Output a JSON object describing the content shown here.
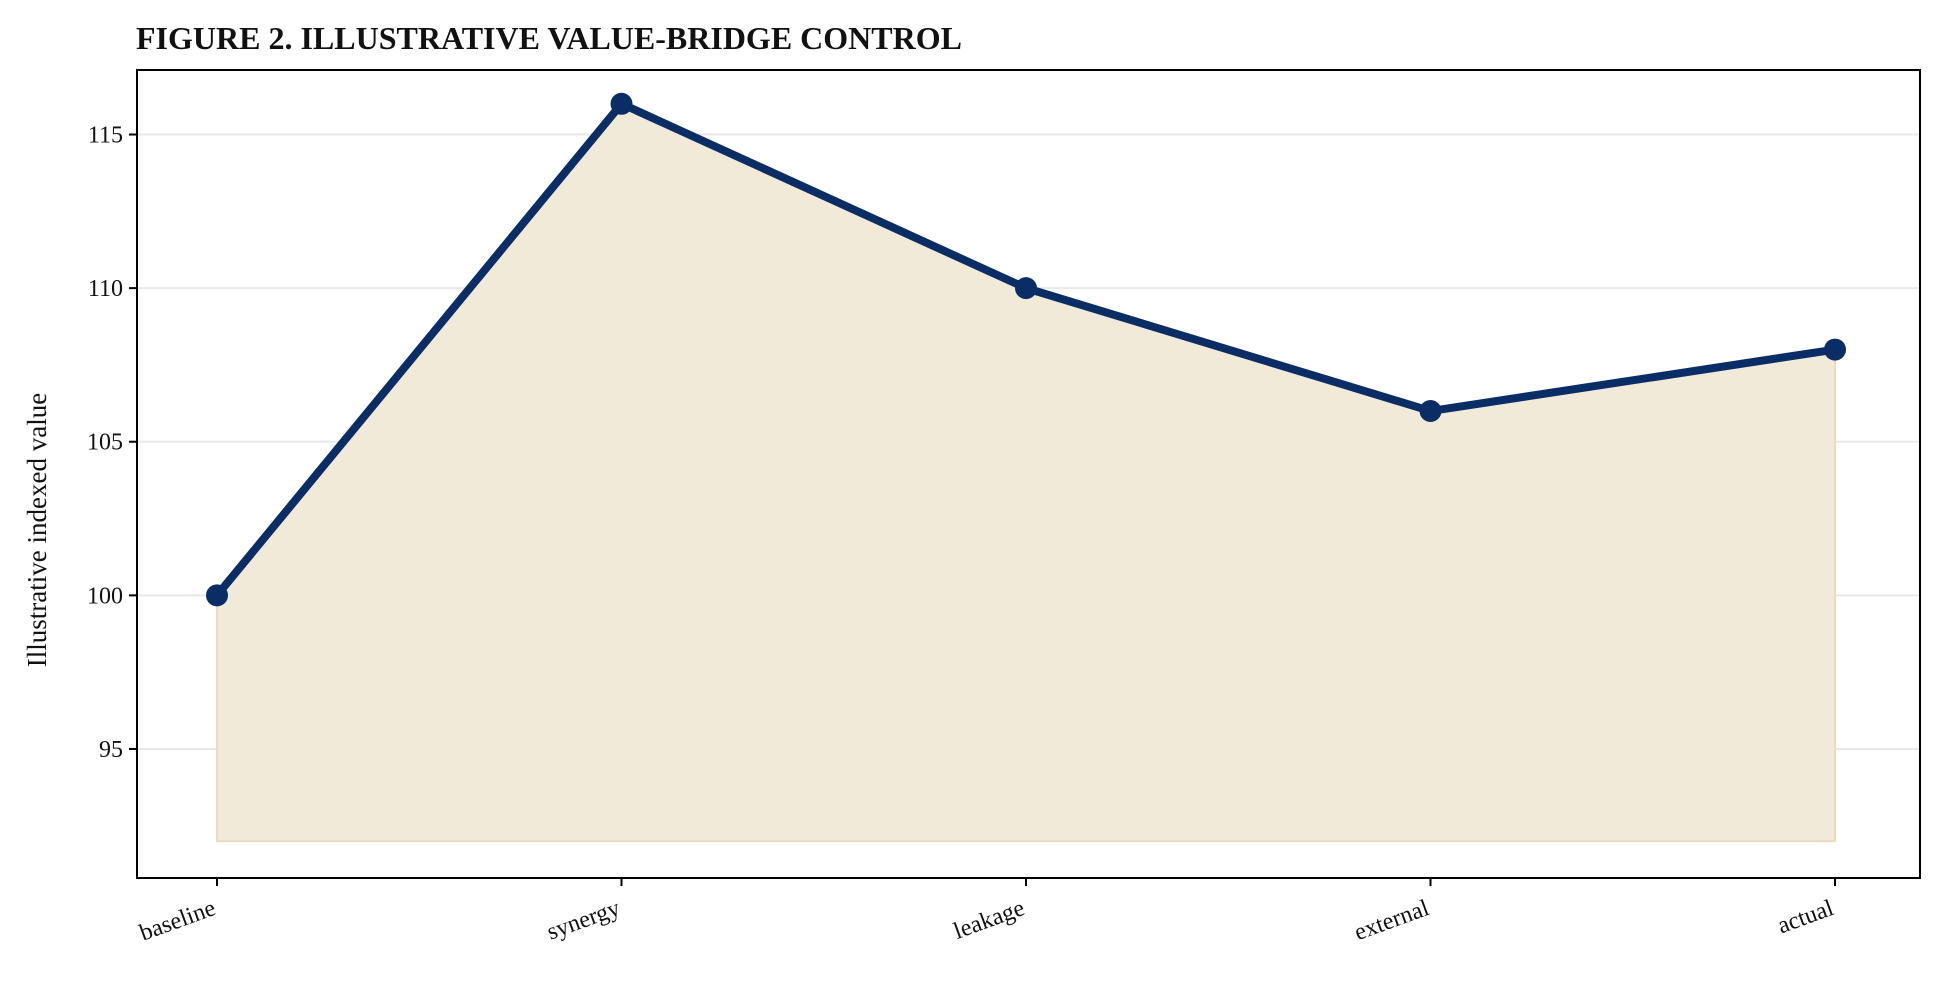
{
  "chart_data": {
    "type": "area",
    "title": "FIGURE 2. ILLUSTRATIVE VALUE-BRIDGE CONTROL",
    "xlabel": "",
    "ylabel": "Illustrative indexed value",
    "categories": [
      "baseline",
      "synergy",
      "leakage",
      "external",
      "actual"
    ],
    "series": [
      {
        "values": [
          100,
          116,
          110,
          106,
          108
        ]
      }
    ],
    "area_floor": 92,
    "ylim": [
      90.8,
      117.1
    ],
    "yticks": [
      95,
      100,
      105,
      110,
      115
    ],
    "grid": "horizontal",
    "legend": "none",
    "colors": {
      "line": "#0b2d66",
      "area_fill": "#f2ead9",
      "area_edge": "#eadcc0",
      "grid": "#e8e8e8",
      "axes": "#000000"
    }
  }
}
